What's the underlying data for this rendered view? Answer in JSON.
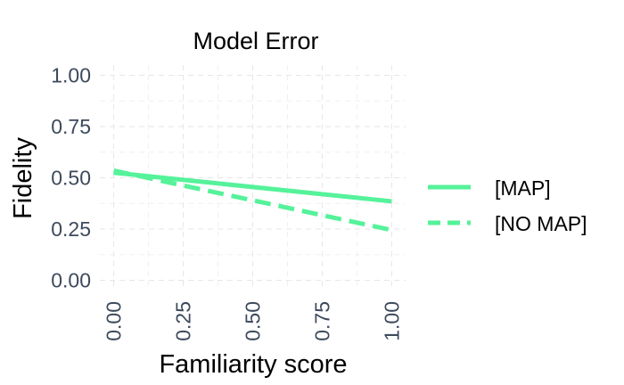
{
  "chart_data": {
    "type": "line",
    "title": "Model Error",
    "xlabel": "Familiarity score",
    "ylabel": "Fidelity",
    "xlim": [
      -0.05,
      1.05
    ],
    "ylim": [
      -0.05,
      1.05
    ],
    "x_ticks": [
      "0.00",
      "0.25",
      "0.50",
      "0.75",
      "1.00"
    ],
    "y_ticks": [
      "0.00",
      "0.25",
      "0.50",
      "0.75",
      "1.00"
    ],
    "grid": true,
    "legend_position": "right",
    "series": [
      {
        "name": "[MAP]",
        "style": "solid",
        "color": "#55f29a",
        "x": [
          0,
          1
        ],
        "y": [
          0.525,
          0.385
        ]
      },
      {
        "name": "[NO MAP]",
        "style": "dashed",
        "color": "#55f29a",
        "x": [
          0,
          1
        ],
        "y": [
          0.535,
          0.245
        ]
      }
    ]
  }
}
